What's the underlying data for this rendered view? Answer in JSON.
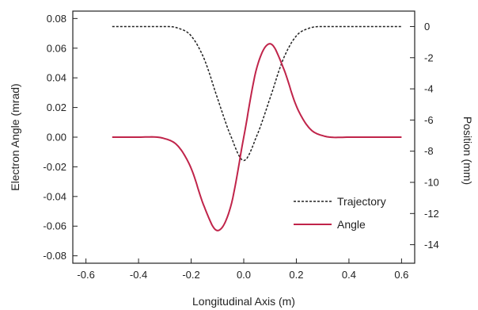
{
  "chart_data": {
    "type": "line",
    "xlabel": "Longitudinal Axis (m)",
    "ylabel": "Electron Angle (mrad)",
    "y2label": "Position (mm)",
    "xlim": [
      -0.65,
      0.65
    ],
    "ylim": [
      -0.085,
      0.085
    ],
    "y2lim": [
      -15.19,
      0.99
    ],
    "x_ticks": [
      "-0.6",
      "-0.4",
      "-0.2",
      "0.0",
      "0.2",
      "0.4",
      "0.6"
    ],
    "x_tick_values": [
      -0.6,
      -0.4,
      -0.2,
      0.0,
      0.2,
      0.4,
      0.6
    ],
    "y_ticks": [
      "-0.08",
      "-0.06",
      "-0.04",
      "-0.02",
      "0.00",
      "0.02",
      "0.04",
      "0.06",
      "0.08"
    ],
    "y_tick_values": [
      -0.08,
      -0.06,
      -0.04,
      -0.02,
      0.0,
      0.02,
      0.04,
      0.06,
      0.08
    ],
    "y2_ticks": [
      "0",
      "-2",
      "-4",
      "-6",
      "-8",
      "-10",
      "-12",
      "-14"
    ],
    "y2_tick_values": [
      0,
      -2,
      -4,
      -6,
      -8,
      -10,
      -12,
      -14
    ],
    "grid": false,
    "legend_position": "lower-right",
    "series": [
      {
        "name": "Trajectory",
        "axis": "right",
        "color": "#222222",
        "style": "dashed",
        "x": [
          -0.5,
          -0.4,
          -0.3,
          -0.25,
          -0.2,
          -0.15,
          -0.1,
          -0.05,
          0.0,
          0.05,
          0.1,
          0.15,
          0.2,
          0.25,
          0.3,
          0.4,
          0.5,
          0.6
        ],
        "values": [
          0.0,
          0.0,
          0.0,
          -0.1,
          -0.6,
          -2.1,
          -4.6,
          -7.0,
          -8.6,
          -7.0,
          -4.6,
          -2.1,
          -0.6,
          -0.1,
          0.0,
          0.0,
          0.0,
          0.0
        ]
      },
      {
        "name": "Angle",
        "axis": "left",
        "color": "#c0244a",
        "style": "solid",
        "x": [
          -0.5,
          -0.4,
          -0.3,
          -0.25,
          -0.2,
          -0.15,
          -0.1,
          -0.05,
          0.0,
          0.05,
          0.1,
          0.15,
          0.2,
          0.25,
          0.3,
          0.4,
          0.5,
          0.6
        ],
        "values": [
          0.0,
          0.0,
          -0.001,
          -0.006,
          -0.021,
          -0.047,
          -0.063,
          -0.047,
          0.0,
          0.047,
          0.063,
          0.047,
          0.021,
          0.006,
          0.001,
          0.0,
          0.0,
          0.0
        ]
      }
    ]
  }
}
